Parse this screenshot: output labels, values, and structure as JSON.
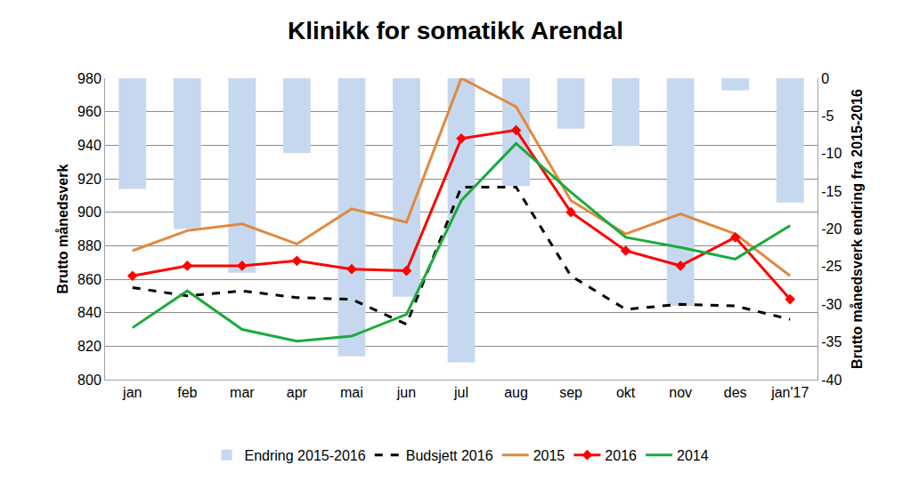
{
  "chart_data": {
    "type": "line",
    "title": "Klinikk for somatikk Arendal",
    "y_label": "Brutto månedsverk",
    "y2_label": "Brutto månedsverk endring fra 2015-2016",
    "categories": [
      "jan",
      "feb",
      "mar",
      "apr",
      "mai",
      "jun",
      "jul",
      "aug",
      "sep",
      "okt",
      "nov",
      "des",
      "jan'17"
    ],
    "ylim": [
      800,
      980
    ],
    "yticks": [
      800,
      820,
      840,
      860,
      880,
      900,
      920,
      940,
      960,
      980
    ],
    "y2lim": [
      -40,
      0
    ],
    "y2ticks": [
      -40,
      -35,
      -30,
      -25,
      -20,
      -15,
      -10,
      -5,
      0
    ],
    "grid": true,
    "legend": "bottom",
    "series": [
      {
        "name": "Endring 2015-2016",
        "type": "bar",
        "axis": "y2",
        "color": "#c6d7f0",
        "values": [
          -14.7,
          -20,
          -25.8,
          -9.9,
          -36.9,
          -29,
          -37.7,
          -14.3,
          -6.7,
          -9,
          -30.2,
          -1.6,
          -16.5
        ]
      },
      {
        "name": "Budsjett 2016",
        "type": "line",
        "color": "#000000",
        "line_style": "dash",
        "values": [
          855,
          850,
          853,
          849,
          848,
          833,
          915,
          915,
          862,
          842,
          845,
          844,
          836
        ]
      },
      {
        "name": "2015",
        "type": "line",
        "color": "#e0893e",
        "line_style": "solid",
        "values": [
          877,
          889,
          893,
          881,
          902,
          894,
          980,
          963,
          907,
          887,
          899,
          887,
          862
        ]
      },
      {
        "name": "2016",
        "type": "line",
        "color": "#ff0000",
        "line_style": "solid",
        "marker": "diamond",
        "values": [
          862,
          868,
          868,
          871,
          866,
          865,
          944,
          949,
          900,
          877,
          868,
          885,
          848
        ]
      },
      {
        "name": "2014",
        "type": "line",
        "color": "#1aab3c",
        "line_style": "solid",
        "values": [
          831,
          853,
          830,
          823,
          826,
          839,
          907,
          941,
          912,
          885,
          879,
          872,
          892
        ]
      }
    ]
  }
}
